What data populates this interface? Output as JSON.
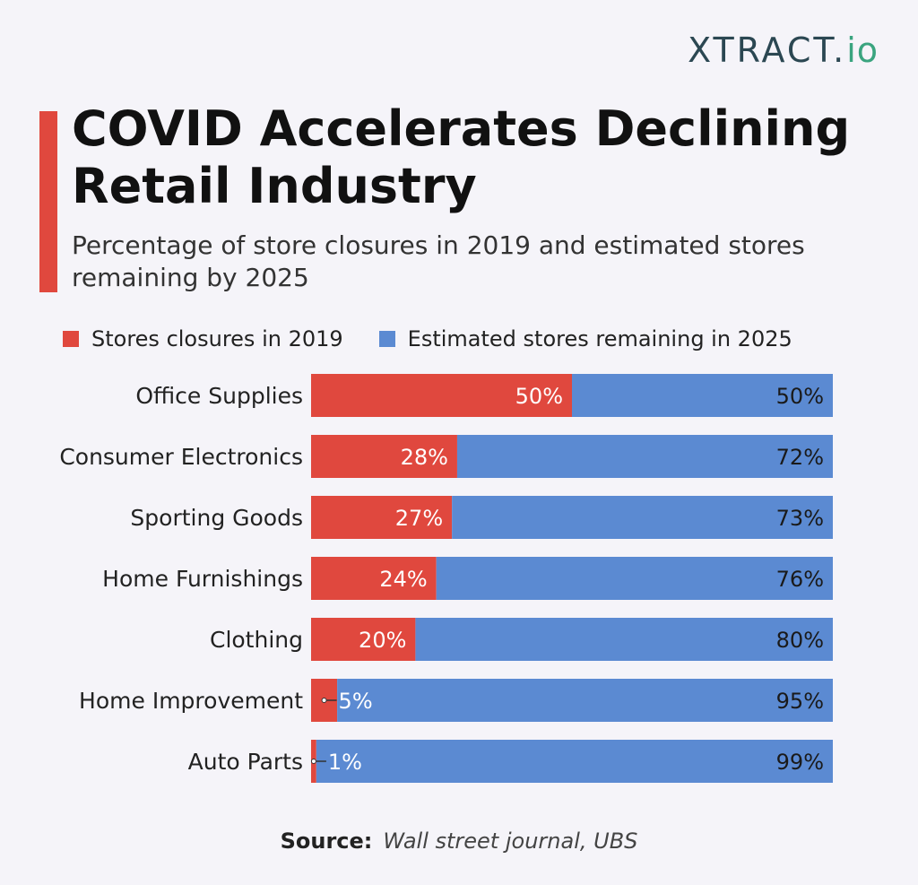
{
  "logo": {
    "main": "XTRACT",
    "dot": ".",
    "suffix": "io"
  },
  "title": "COVID Accelerates Declining Retail Industry",
  "subtitle": "Percentage of store closures in 2019 and estimated stores remaining by 2025",
  "source": {
    "label": "Source:",
    "text": "Wall street journal, UBS"
  },
  "chart_data": {
    "type": "bar",
    "orientation": "horizontal",
    "stacked": true,
    "title": "COVID Accelerates Declining Retail Industry",
    "subtitle": "Percentage of store closures in 2019 and estimated stores remaining by 2025",
    "categories": [
      "Office Supplies",
      "Consumer Electronics",
      "Sporting Goods",
      "Home Furnishings",
      "Clothing",
      "Home Improvement",
      "Auto Parts"
    ],
    "series": [
      {
        "name": "Stores closures in 2019",
        "color": "#e0483e",
        "values": [
          50,
          28,
          27,
          24,
          20,
          5,
          1
        ],
        "labels": [
          "50%",
          "28%",
          "27%",
          "24%",
          "20%",
          "5%",
          "1%"
        ]
      },
      {
        "name": "Estimated stores remaining in 2025",
        "color": "#5b8ad2",
        "values": [
          50,
          72,
          73,
          76,
          80,
          95,
          99
        ],
        "labels": [
          "50%",
          "72%",
          "73%",
          "76%",
          "80%",
          "95%",
          "99%"
        ]
      }
    ],
    "xlim": [
      0,
      100
    ],
    "legend_position": "top",
    "grid": false
  }
}
